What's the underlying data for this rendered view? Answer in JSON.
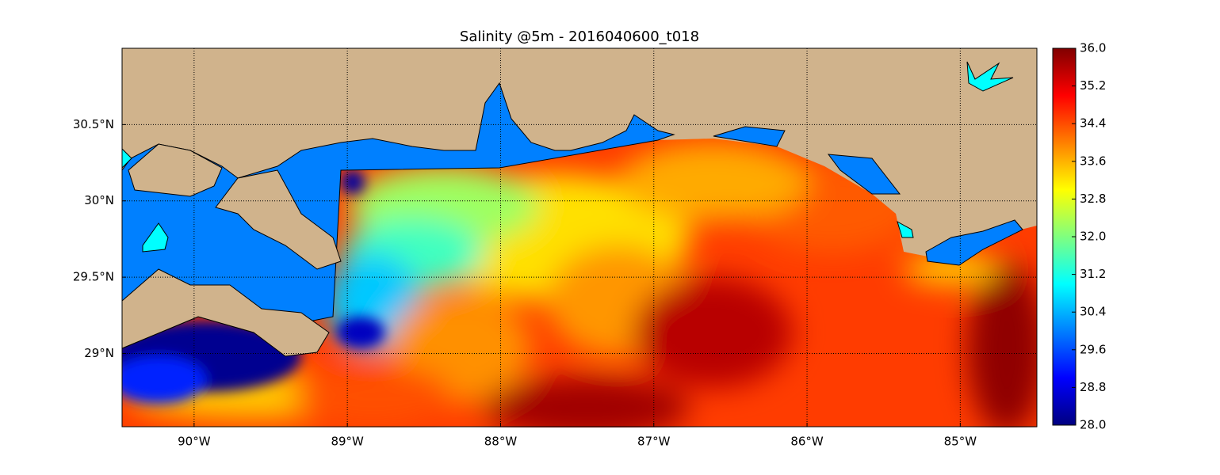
{
  "chart_data": {
    "type": "map",
    "title": "Salinity @5m - 2016040600_t018",
    "xlim": [
      -90.47,
      -84.5
    ],
    "ylim": [
      28.52,
      31.0
    ],
    "xticks": [
      {
        "value": -90,
        "label": "90°W"
      },
      {
        "value": -89,
        "label": "89°W"
      },
      {
        "value": -88,
        "label": "88°W"
      },
      {
        "value": -87,
        "label": "87°W"
      },
      {
        "value": -86,
        "label": "86°W"
      },
      {
        "value": -85,
        "label": "85°W"
      }
    ],
    "yticks": [
      {
        "value": 29,
        "label": "29°N"
      },
      {
        "value": 29.5,
        "label": "29.5°N"
      },
      {
        "value": 30,
        "label": "30°N"
      },
      {
        "value": 30.5,
        "label": "30.5°N"
      }
    ],
    "grid": true,
    "colormap": "jet",
    "clim": [
      28,
      36
    ],
    "cticks": [
      {
        "value": 28,
        "label": "28.0"
      },
      {
        "value": 28.8,
        "label": "28.8"
      },
      {
        "value": 29.6,
        "label": "29.6"
      },
      {
        "value": 30.4,
        "label": "30.4"
      },
      {
        "value": 31.2,
        "label": "31.2"
      },
      {
        "value": 32,
        "label": "32.0"
      },
      {
        "value": 32.8,
        "label": "32.8"
      },
      {
        "value": 33.6,
        "label": "33.6"
      },
      {
        "value": 34.4,
        "label": "34.4"
      },
      {
        "value": 35.2,
        "label": "35.2"
      },
      {
        "value": 36,
        "label": "36.0"
      }
    ]
  }
}
